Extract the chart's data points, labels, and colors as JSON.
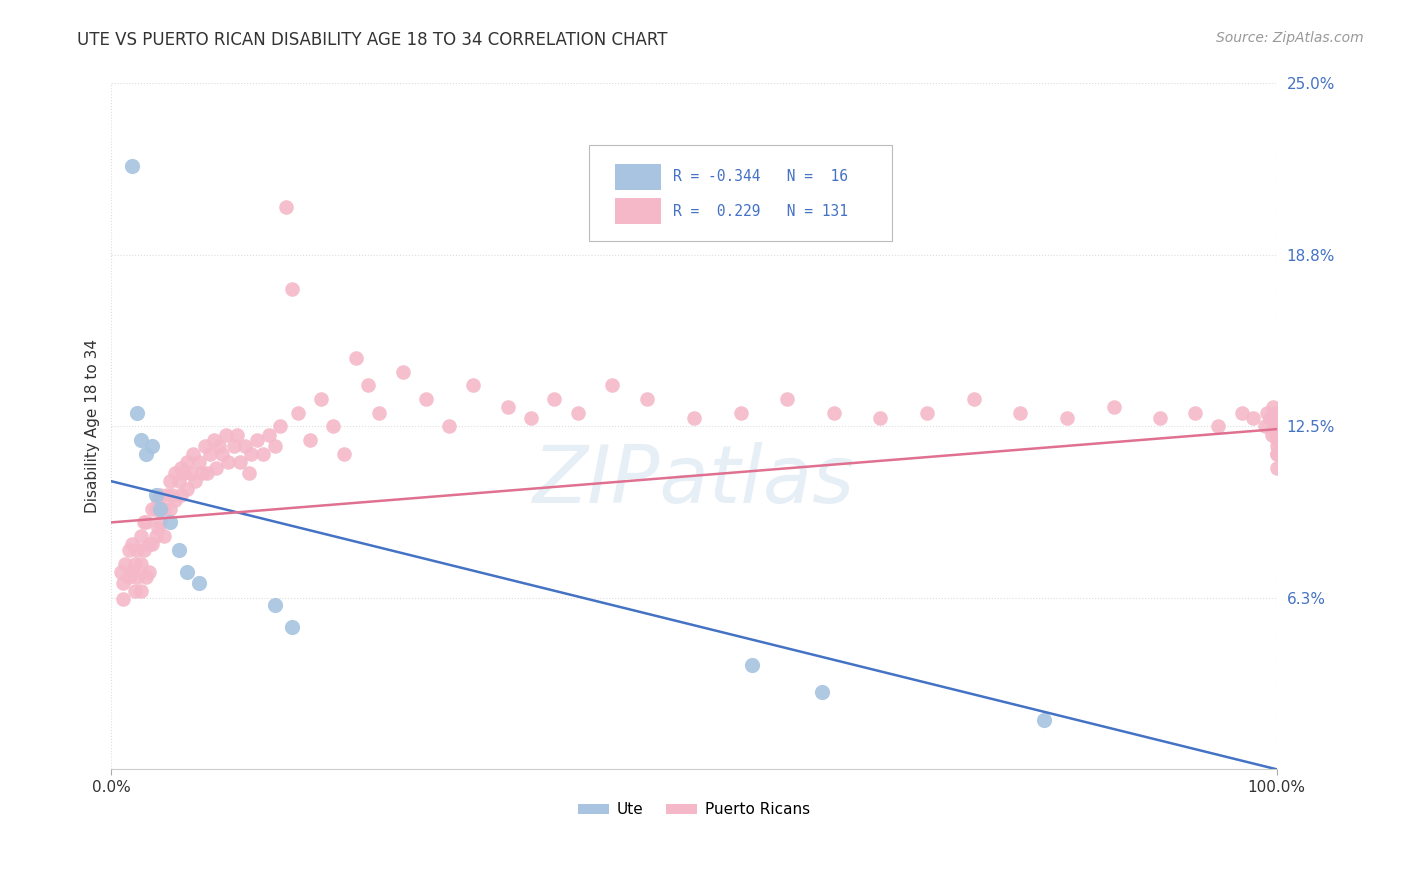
{
  "title": "UTE VS PUERTO RICAN DISABILITY AGE 18 TO 34 CORRELATION CHART",
  "source": "Source: ZipAtlas.com",
  "ylabel": "Disability Age 18 to 34",
  "xlim": [
    0.0,
    1.0
  ],
  "ylim": [
    0.0,
    0.25
  ],
  "ytick_vals": [
    0.0625,
    0.125,
    0.1875,
    0.25
  ],
  "ytick_labels": [
    "6.3%",
    "12.5%",
    "18.8%",
    "25.0%"
  ],
  "xtick_vals": [
    0.0,
    1.0
  ],
  "xtick_labels": [
    "0.0%",
    "100.0%"
  ],
  "ute_R": -0.344,
  "ute_N": 16,
  "pr_R": 0.229,
  "pr_N": 131,
  "ute_color": "#a8c4e0",
  "pr_color": "#f4b8c8",
  "ute_line_color": "#4472c4",
  "pr_line_color": "#e07090",
  "background_color": "#ffffff",
  "grid_color": "#dddddd",
  "right_label_color": "#4472c4",
  "ute_line_x": [
    0.0,
    1.0
  ],
  "ute_line_y": [
    0.105,
    0.0
  ],
  "pr_line_x": [
    0.0,
    1.0
  ],
  "pr_line_y": [
    0.09,
    0.124
  ],
  "ute_x": [
    0.018,
    0.022,
    0.025,
    0.03,
    0.035,
    0.038,
    0.042,
    0.05,
    0.058,
    0.065,
    0.075,
    0.14,
    0.155,
    0.55,
    0.61,
    0.8
  ],
  "ute_y": [
    0.22,
    0.13,
    0.12,
    0.115,
    0.118,
    0.1,
    0.095,
    0.09,
    0.08,
    0.072,
    0.068,
    0.06,
    0.052,
    0.038,
    0.028,
    0.018
  ],
  "pr_x": [
    0.008,
    0.01,
    0.01,
    0.012,
    0.015,
    0.015,
    0.018,
    0.018,
    0.02,
    0.02,
    0.022,
    0.022,
    0.025,
    0.025,
    0.025,
    0.028,
    0.028,
    0.03,
    0.03,
    0.032,
    0.032,
    0.035,
    0.035,
    0.038,
    0.038,
    0.04,
    0.04,
    0.042,
    0.042,
    0.045,
    0.045,
    0.048,
    0.05,
    0.05,
    0.052,
    0.055,
    0.055,
    0.058,
    0.06,
    0.06,
    0.062,
    0.065,
    0.065,
    0.068,
    0.07,
    0.072,
    0.075,
    0.078,
    0.08,
    0.082,
    0.085,
    0.088,
    0.09,
    0.092,
    0.095,
    0.098,
    0.1,
    0.105,
    0.108,
    0.11,
    0.115,
    0.118,
    0.12,
    0.125,
    0.13,
    0.135,
    0.14,
    0.145,
    0.15,
    0.155,
    0.16,
    0.17,
    0.18,
    0.19,
    0.2,
    0.21,
    0.22,
    0.23,
    0.25,
    0.27,
    0.29,
    0.31,
    0.34,
    0.36,
    0.38,
    0.4,
    0.43,
    0.46,
    0.5,
    0.54,
    0.58,
    0.62,
    0.66,
    0.7,
    0.74,
    0.78,
    0.82,
    0.86,
    0.9,
    0.93,
    0.95,
    0.97,
    0.98,
    0.99,
    0.992,
    0.994,
    0.996,
    0.997,
    0.998,
    0.999,
    1.0,
    1.0,
    1.0,
    1.0,
    1.0,
    1.0,
    1.0,
    1.0,
    1.0,
    1.0,
    1.0,
    1.0,
    1.0,
    1.0,
    1.0,
    1.0,
    1.0,
    1.0,
    1.0,
    1.0,
    1.0
  ],
  "pr_y": [
    0.072,
    0.068,
    0.062,
    0.075,
    0.08,
    0.07,
    0.082,
    0.072,
    0.075,
    0.065,
    0.08,
    0.07,
    0.085,
    0.075,
    0.065,
    0.09,
    0.08,
    0.07,
    0.09,
    0.082,
    0.072,
    0.095,
    0.082,
    0.095,
    0.085,
    0.098,
    0.088,
    0.1,
    0.09,
    0.095,
    0.085,
    0.1,
    0.105,
    0.095,
    0.1,
    0.108,
    0.098,
    0.105,
    0.11,
    0.1,
    0.108,
    0.112,
    0.102,
    0.108,
    0.115,
    0.105,
    0.112,
    0.108,
    0.118,
    0.108,
    0.115,
    0.12,
    0.11,
    0.118,
    0.115,
    0.122,
    0.112,
    0.118,
    0.122,
    0.112,
    0.118,
    0.108,
    0.115,
    0.12,
    0.115,
    0.122,
    0.118,
    0.125,
    0.205,
    0.175,
    0.13,
    0.12,
    0.135,
    0.125,
    0.115,
    0.15,
    0.14,
    0.13,
    0.145,
    0.135,
    0.125,
    0.14,
    0.132,
    0.128,
    0.135,
    0.13,
    0.14,
    0.135,
    0.128,
    0.13,
    0.135,
    0.13,
    0.128,
    0.13,
    0.135,
    0.13,
    0.128,
    0.132,
    0.128,
    0.13,
    0.125,
    0.13,
    0.128,
    0.125,
    0.13,
    0.128,
    0.122,
    0.132,
    0.128,
    0.125,
    0.13,
    0.128,
    0.122,
    0.13,
    0.128,
    0.125,
    0.122,
    0.13,
    0.128,
    0.125,
    0.122,
    0.13,
    0.128,
    0.125,
    0.122,
    0.118,
    0.115,
    0.12,
    0.115,
    0.11,
    0.125
  ]
}
